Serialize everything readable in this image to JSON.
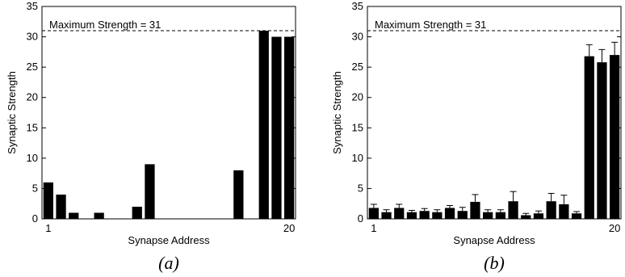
{
  "chart_data": [
    {
      "type": "bar",
      "panel_label": "(a)",
      "xlabel": "Synapse Address",
      "ylabel": "Synaptic Strength",
      "ylim": [
        0,
        35
      ],
      "yticks": [
        0,
        5,
        10,
        15,
        20,
        25,
        30,
        35
      ],
      "xticks": [
        1,
        20
      ],
      "x": [
        1,
        2,
        3,
        4,
        5,
        6,
        7,
        8,
        9,
        10,
        11,
        12,
        13,
        14,
        15,
        16,
        17,
        18,
        19,
        20
      ],
      "values": [
        6,
        4,
        1,
        0,
        1,
        0,
        0,
        2,
        9,
        0,
        0,
        0,
        0,
        0,
        0,
        8,
        0,
        31,
        30,
        30
      ],
      "reference_line": {
        "y": 31,
        "style": "dashed",
        "label": "Maximum Strength = 31"
      },
      "bar_color": "#000000",
      "grid": false
    },
    {
      "type": "bar",
      "panel_label": "(b)",
      "xlabel": "Synapse Address",
      "ylabel": "Synaptic Strength",
      "ylim": [
        0,
        35
      ],
      "yticks": [
        0,
        5,
        10,
        15,
        20,
        25,
        30,
        35
      ],
      "xticks": [
        1,
        20
      ],
      "x": [
        1,
        2,
        3,
        4,
        5,
        6,
        7,
        8,
        9,
        10,
        11,
        12,
        13,
        14,
        15,
        16,
        17,
        18,
        19,
        20
      ],
      "values": [
        1.8,
        1.1,
        1.8,
        1.1,
        1.3,
        1.1,
        1.8,
        1.3,
        2.8,
        1.1,
        1.1,
        2.9,
        0.6,
        0.9,
        2.9,
        2.4,
        0.9,
        26.8,
        25.8,
        27.0
      ],
      "errors": [
        0.6,
        0.4,
        0.6,
        0.3,
        0.4,
        0.4,
        0.4,
        0.6,
        1.2,
        0.4,
        0.4,
        1.6,
        0.3,
        0.4,
        1.3,
        1.5,
        0.3,
        1.9,
        2.1,
        2.1
      ],
      "reference_line": {
        "y": 31,
        "style": "dashed",
        "label": "Maximum Strength = 31"
      },
      "bar_color": "#000000",
      "grid": false
    }
  ]
}
